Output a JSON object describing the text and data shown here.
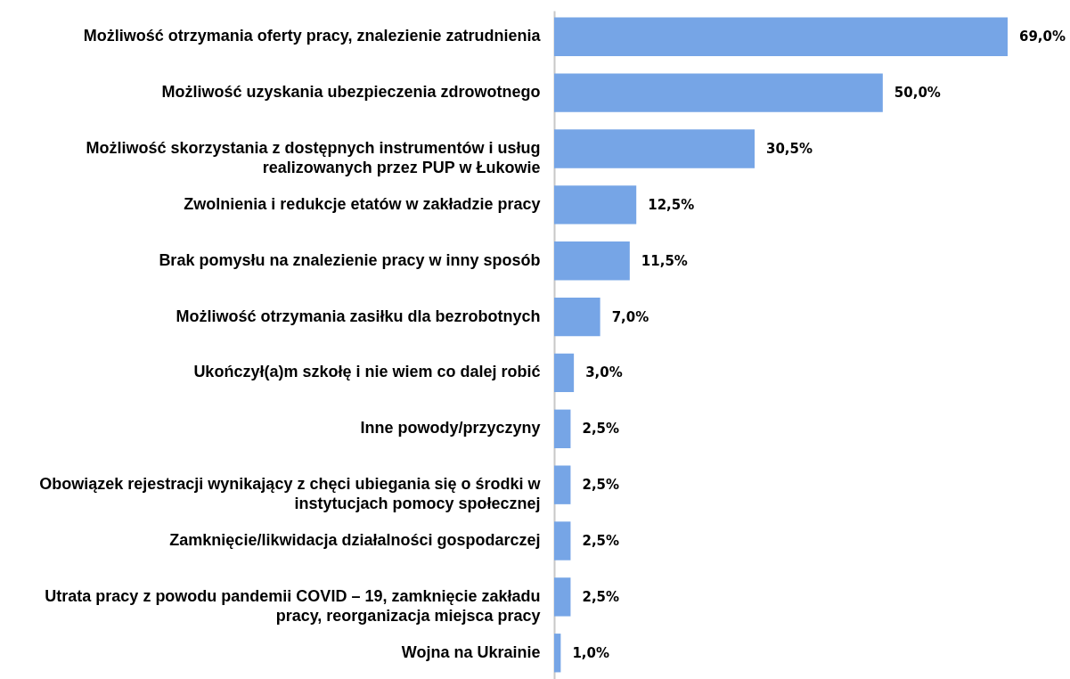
{
  "chart_data": {
    "type": "bar",
    "orientation": "horizontal",
    "categories": [
      "Możliwość otrzymania oferty pracy, znalezienie zatrudnienia",
      "Możliwość uzyskania ubezpieczenia zdrowotnego",
      "Możliwość skorzystania z dostępnych instrumentów i usług realizowanych przez PUP w Łukowie",
      "Zwolnienia i redukcje etatów w zakładzie pracy",
      "Brak pomysłu na znalezienie pracy w inny sposób",
      "Możliwość otrzymania zasiłku dla bezrobotnych",
      "Ukończył(a)m szkołę i nie wiem co dalej robić",
      "Inne powody/przyczyny",
      "Obowiązek rejestracji wynikający z chęci ubiegania się o środki w instytucjach pomocy społecznej",
      "Zamknięcie/likwidacja działalności gospodarczej",
      "Utrata pracy z powodu pandemii COVID – 19, zamknięcie zakładu pracy, reorganizacja miejsca pracy",
      "Wojna na Ukrainie"
    ],
    "values": [
      69,
      50,
      30.5,
      12.5,
      11.5,
      7,
      3,
      2.5,
      2.5,
      2.5,
      2.5,
      1
    ],
    "color": "#76a5e6",
    "value_labels": [
      "69,0%",
      "50,0%",
      "30,5%",
      "12,5%",
      "11,5%",
      "7,0%",
      "3,0%",
      "2,5%",
      "2,5%",
      "2,5%",
      "2,5%",
      "1,0%"
    ],
    "tick_labels": "y"
  }
}
